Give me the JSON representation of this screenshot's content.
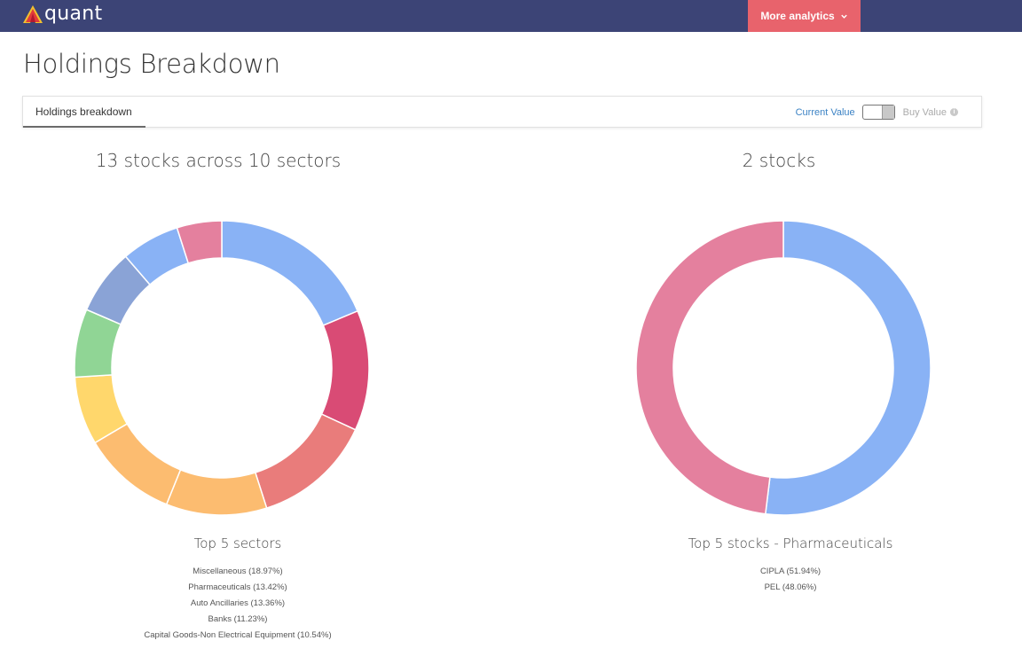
{
  "header": {
    "logo_text": "quant",
    "more_button_label": "More analytics"
  },
  "page": {
    "title": "Holdings Breakdown"
  },
  "tabs": {
    "active_tab_label": "Holdings breakdown"
  },
  "value_toggle": {
    "left_label": "Current Value",
    "right_label": "Buy Value"
  },
  "colors": {
    "header_bg": "#3c4476",
    "accent_button": "#e8636c",
    "link_blue": "#3b82c4"
  },
  "icons": {
    "logo": "quant-logo-icon",
    "chevron": "chevron-down-icon",
    "info": "info-icon"
  },
  "chart_data": [
    {
      "type": "pie",
      "variant": "donut",
      "title": "13 stocks across 10 sectors",
      "legend_title": "Top 5 sectors",
      "legend_items": [
        "Miscellaneous (18.97%)",
        "Pharmaceuticals (13.42%)",
        "Auto Ancillaries (13.36%)",
        "Banks (11.23%)",
        "Capital Goods-Non Electrical Equipment (10.54%)"
      ],
      "slices": [
        {
          "value": 18.97,
          "color": "#89b2f5"
        },
        {
          "value": 13.42,
          "color": "#d94b75"
        },
        {
          "value": 13.36,
          "color": "#e97c7b"
        },
        {
          "value": 11.23,
          "color": "#fcbc70"
        },
        {
          "value": 10.54,
          "color": "#fcbc70"
        },
        {
          "value": 7.6,
          "color": "#ffd76c"
        },
        {
          "value": 7.6,
          "color": "#90d595"
        },
        {
          "value": 7.3,
          "color": "#8aa3d6"
        },
        {
          "value": 6.5,
          "color": "#89b2f5"
        },
        {
          "value": 5.0,
          "color": "#e4809e"
        }
      ]
    },
    {
      "type": "pie",
      "variant": "donut",
      "title": "2 stocks",
      "legend_title": "Top 5 stocks - Pharmaceuticals",
      "legend_items": [
        "CIPLA (51.94%)",
        "PEL (48.06%)"
      ],
      "slices": [
        {
          "value": 51.94,
          "color": "#89b2f5"
        },
        {
          "value": 48.06,
          "color": "#e4809e"
        }
      ]
    }
  ]
}
